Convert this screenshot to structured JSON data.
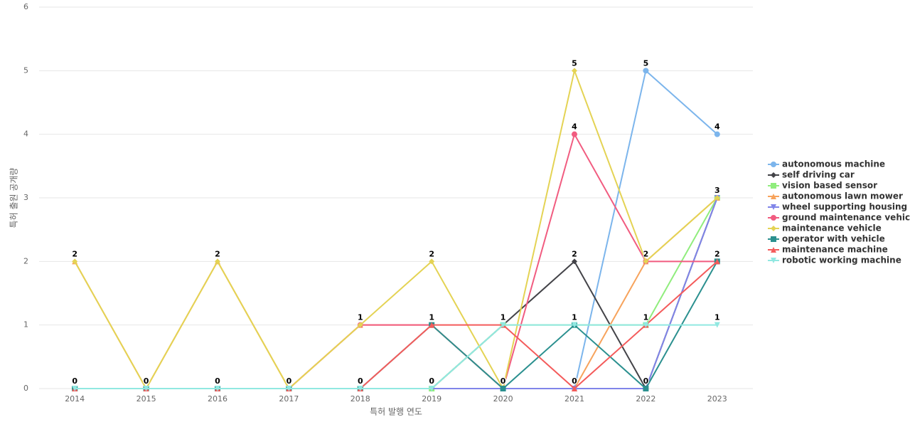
{
  "chart_data": {
    "type": "line",
    "x_label": "특허 발행 연도",
    "y_label": "특허 출원 공개량",
    "categories": [
      "2014",
      "2015",
      "2016",
      "2017",
      "2018",
      "2019",
      "2020",
      "2021",
      "2022",
      "2023"
    ],
    "ylim": [
      0,
      6
    ],
    "yticks": [
      0,
      1,
      2,
      3,
      4,
      5,
      6
    ],
    "grid": true,
    "legend": "right",
    "series": [
      {
        "name": "autonomous machine",
        "color": "#7cb5ec",
        "marker": "circle",
        "values": [
          0,
          0,
          0,
          0,
          0,
          0,
          0,
          0,
          5,
          4
        ]
      },
      {
        "name": "self driving car",
        "color": "#434348",
        "marker": "diamond",
        "values": [
          0,
          0,
          0,
          0,
          0,
          0,
          1,
          2,
          0,
          3
        ]
      },
      {
        "name": "vision based sensor",
        "color": "#90ed7d",
        "marker": "square",
        "values": [
          0,
          0,
          0,
          0,
          0,
          0,
          1,
          1,
          1,
          3
        ]
      },
      {
        "name": "autonomous lawn mower",
        "color": "#f7a35c",
        "marker": "triangle",
        "values": [
          2,
          0,
          2,
          0,
          1,
          1,
          0,
          0,
          2,
          3
        ]
      },
      {
        "name": "wheel supporting housing",
        "color": "#8085e9",
        "marker": "triangle-down",
        "values": [
          0,
          0,
          0,
          0,
          0,
          0,
          0,
          0,
          0,
          3
        ]
      },
      {
        "name": "ground maintenance vehicle",
        "color": "#f15c80",
        "marker": "circle",
        "values": [
          0,
          0,
          0,
          0,
          1,
          1,
          0,
          4,
          2,
          2
        ]
      },
      {
        "name": "maintenance vehicle",
        "color": "#e4d354",
        "marker": "diamond",
        "values": [
          2,
          0,
          2,
          0,
          1,
          2,
          0,
          5,
          2,
          3
        ]
      },
      {
        "name": "operator with vehicle",
        "color": "#2b908f",
        "marker": "square",
        "values": [
          0,
          0,
          0,
          0,
          0,
          1,
          0,
          1,
          0,
          2
        ]
      },
      {
        "name": "maintenance machine",
        "color": "#f45b5b",
        "marker": "triangle",
        "values": [
          0,
          0,
          0,
          0,
          0,
          1,
          1,
          0,
          1,
          2
        ]
      },
      {
        "name": "robotic working machine",
        "color": "#91e8e1",
        "marker": "triangle-down",
        "values": [
          0,
          0,
          0,
          0,
          0,
          0,
          1,
          1,
          1,
          1
        ]
      }
    ]
  }
}
